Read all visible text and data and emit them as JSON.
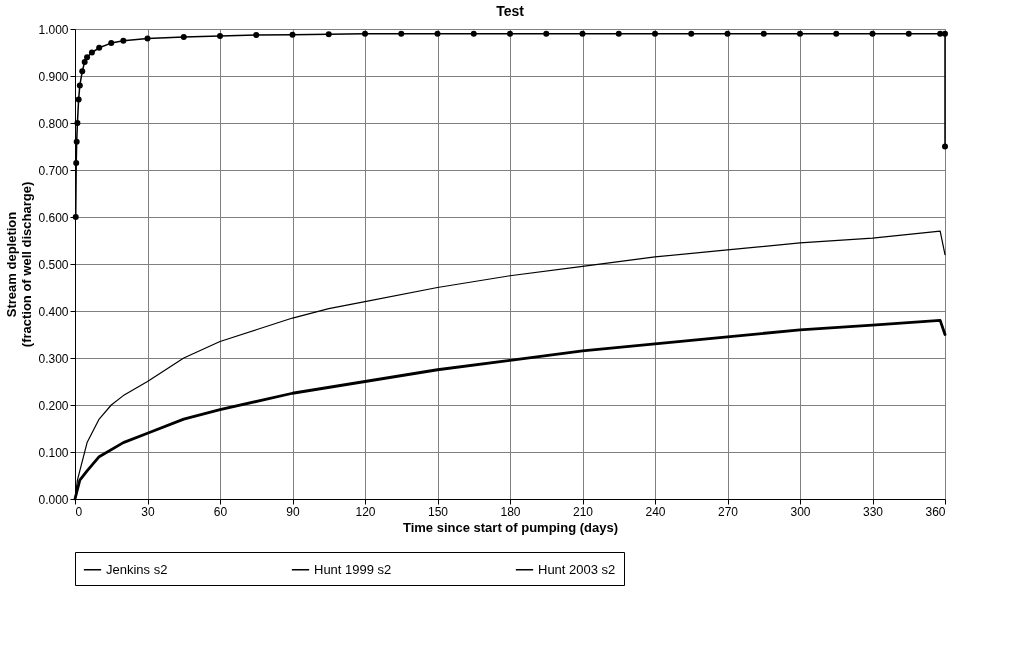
{
  "chart_data": {
    "type": "line",
    "title": "Test",
    "xlabel": "Time since start of pumping (days)",
    "ylabel": "Stream depletion\n(fraction of well discharge)",
    "xlim": [
      0,
      360
    ],
    "xticks": [
      0,
      30,
      60,
      90,
      120,
      150,
      180,
      210,
      240,
      270,
      300,
      330,
      360
    ],
    "ylim": [
      0,
      1
    ],
    "yticks": [
      {
        "value": 0,
        "label": "0.000"
      },
      {
        "value": 0.1,
        "label": "0.100"
      },
      {
        "value": 0.2,
        "label": "0.200"
      },
      {
        "value": 0.3,
        "label": "0.300"
      },
      {
        "value": 0.4,
        "label": "0.400"
      },
      {
        "value": 0.5,
        "label": "0.500"
      },
      {
        "value": 0.6,
        "label": "0.600"
      },
      {
        "value": 0.7,
        "label": "0.700"
      },
      {
        "value": 0.8,
        "label": "0.800"
      },
      {
        "value": 0.9,
        "label": "0.900"
      },
      {
        "value": 1,
        "label": "1.000"
      }
    ],
    "grid": true,
    "legend": "bottom",
    "series": [
      {
        "name": "Jenkins s2",
        "color": "#000000",
        "marker": "circle",
        "x": [
          0.3,
          0.5,
          0.7,
          1,
          1.5,
          2,
          3,
          4,
          5,
          7,
          10,
          15,
          20,
          30,
          45,
          60,
          75,
          90,
          105,
          120,
          135,
          150,
          165,
          180,
          195,
          210,
          225,
          240,
          255,
          270,
          285,
          300,
          315,
          330,
          345,
          358,
          360,
          360
        ],
        "values": [
          0.6,
          0.715,
          0.76,
          0.8,
          0.85,
          0.88,
          0.91,
          0.93,
          0.94,
          0.95,
          0.96,
          0.97,
          0.975,
          0.98,
          0.983,
          0.985,
          0.987,
          0.988,
          0.989,
          0.99,
          0.99,
          0.99,
          0.99,
          0.99,
          0.99,
          0.99,
          0.99,
          0.99,
          0.99,
          0.99,
          0.99,
          0.99,
          0.99,
          0.99,
          0.99,
          0.99,
          0.99,
          0.75
        ]
      },
      {
        "name": "Hunt 1999 s2",
        "color": "#000000",
        "marker": "none",
        "x": [
          0,
          1,
          3,
          5,
          10,
          15,
          20,
          30,
          45,
          60,
          75,
          90,
          105,
          120,
          150,
          180,
          210,
          240,
          270,
          300,
          330,
          358,
          360
        ],
        "values": [
          0,
          0.04,
          0.08,
          0.12,
          0.17,
          0.2,
          0.22,
          0.25,
          0.3,
          0.335,
          0.36,
          0.385,
          0.405,
          0.42,
          0.45,
          0.475,
          0.495,
          0.515,
          0.53,
          0.545,
          0.555,
          0.57,
          0.52
        ]
      },
      {
        "name": "Hunt 2003 s2",
        "color": "#000000",
        "marker": "none",
        "x": [
          0,
          2,
          5,
          10,
          20,
          30,
          45,
          60,
          90,
          120,
          150,
          180,
          210,
          240,
          270,
          300,
          330,
          358,
          360
        ],
        "values": [
          0,
          0.04,
          0.06,
          0.09,
          0.12,
          0.14,
          0.17,
          0.19,
          0.225,
          0.25,
          0.275,
          0.295,
          0.315,
          0.33,
          0.345,
          0.36,
          0.37,
          0.38,
          0.35
        ]
      }
    ]
  }
}
